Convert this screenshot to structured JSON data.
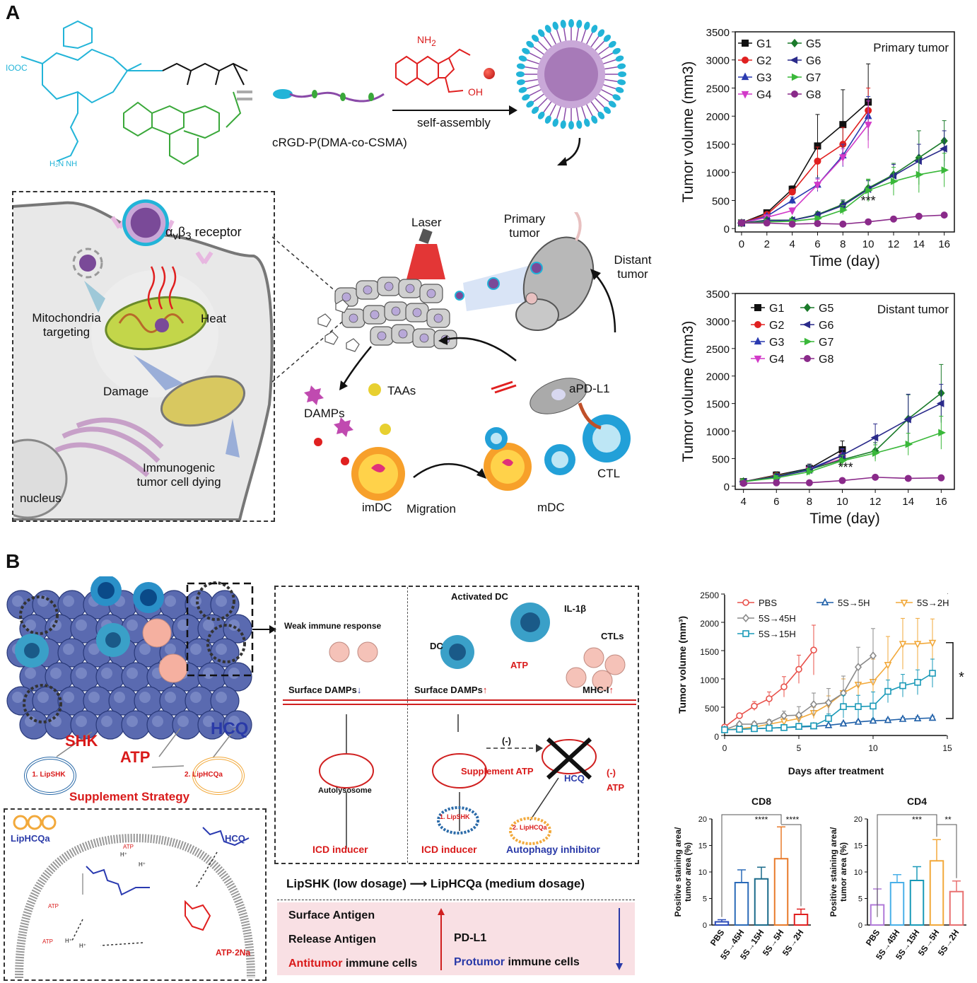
{
  "panelA": {
    "letter": "A",
    "polymer_label": "cRGD-P(DMA-co-CSMA)",
    "self_assembly": "self-assembly",
    "chem_nh2": "NH",
    "chem_nh2_sub": "2",
    "chem_oh": "OH",
    "chem_cooh": "IOOC",
    "receptor_label": "α",
    "receptor_label_v": "v",
    "receptor_label_b": "β",
    "receptor_label_3": "3",
    "receptor_suffix": " receptor",
    "mito_targeting": "Mitochondria\ntargeting",
    "mito_targeting_1": "Mitochondria",
    "mito_targeting_2": "targeting",
    "heat": "Heat",
    "damage": "Damage",
    "icd_1": "Immunogenic",
    "icd_2": "tumor cell dying",
    "nucleus": "nucleus",
    "laser": "Laser",
    "primary_tumor_1": "Primary",
    "primary_tumor_2": "tumor",
    "distant_tumor_1": "Distant",
    "distant_tumor_2": "tumor",
    "damps": "DAMPs",
    "taas": "TAAs",
    "apdl1": "aPD-L1",
    "ctl": "CTL",
    "imdc": "imDC",
    "migration": "Migration",
    "mdc": "mDC"
  },
  "panelB": {
    "letter": "B",
    "shk": "SHK",
    "atp": "ATP",
    "hcq": "HCQ",
    "lipshk": "1. LipSHK",
    "liphcqa": "2. LipHCQa",
    "supplement_strategy": "Supplement Strategy",
    "weak_immune": "Weak immune response",
    "activated_dc": "Activated DC",
    "dc": "DC",
    "il1b": "IL-1β",
    "ctls": "CTLs",
    "atp_small": "ATP",
    "surface_damps": "Surface DAMPs",
    "mhc1": "MHC-I",
    "autolysosome": "Autolysosome",
    "minus": "(-)",
    "supplement_atp": "Supplement ATP",
    "icd_inducer": "ICD inducer",
    "autophagy_inhibitor": "Autophagy inhibitor",
    "lipshk_small": "1. LipSHK",
    "liphcqa_small": "2. LipHCQa",
    "liphcqa_label": "LipHCQa",
    "hcq_label": "HCQ",
    "atp2na": "ATP·2Na",
    "hplus": "H⁺",
    "sequence_left": "LipSHK (low dosage)",
    "sequence_arrow": "⟶",
    "sequence_right": "LipHCQa (medium dosage)",
    "table": {
      "row1": "Surface Antigen",
      "row2": "Release Antigen",
      "row3_red": "Antitumor",
      "row3_rest": " immune cells",
      "right1": "PD-L1",
      "right2_blue": "Protumor",
      "right2_rest": " immune cells"
    }
  },
  "colors": {
    "G1": "#111111",
    "G2": "#e02020",
    "G3": "#2a3ab0",
    "G4": "#d23ac8",
    "G5": "#1a7a2a",
    "G6": "#2a2a8a",
    "G7": "#3ab83a",
    "G8": "#8a2a8a",
    "PBS": "#e8504a",
    "S5H": "#1e5fa8",
    "S2H": "#f2a93b",
    "S45H": "#8a8a8a",
    "S15H": "#1a9ab8",
    "cyan": "#22b4d8",
    "green": "#3aa83a"
  },
  "chart_data": [
    {
      "type": "line",
      "title": "Primary tumor",
      "xlabel": "Time (day)",
      "ylabel": "Tumor volume (mm3)",
      "xlim": [
        -0.5,
        16.8
      ],
      "ylim": [
        -60,
        3500
      ],
      "xticks": [
        0,
        2,
        4,
        6,
        8,
        10,
        12,
        14,
        16
      ],
      "yticks": [
        0,
        500,
        1000,
        1500,
        2000,
        2500,
        3000,
        3500
      ],
      "annotation": "***",
      "legend": "top-left, two columns",
      "series": [
        {
          "name": "G1",
          "marker": "square",
          "x": [
            0,
            2,
            4,
            6,
            8,
            10
          ],
          "y": [
            100,
            280,
            700,
            1470,
            1850,
            2250
          ],
          "err": [
            20,
            40,
            60,
            560,
            620,
            680
          ]
        },
        {
          "name": "G2",
          "marker": "circle",
          "x": [
            0,
            2,
            4,
            6,
            8,
            10
          ],
          "y": [
            100,
            250,
            650,
            1200,
            1500,
            2100
          ],
          "err": [
            20,
            30,
            50,
            250,
            300,
            400
          ]
        },
        {
          "name": "G3",
          "marker": "triangle",
          "x": [
            0,
            2,
            4,
            6,
            8,
            10
          ],
          "y": [
            100,
            220,
            500,
            780,
            1300,
            2000
          ],
          "err": [
            20,
            30,
            60,
            120,
            200,
            350
          ]
        },
        {
          "name": "G4",
          "marker": "triangle-down",
          "x": [
            0,
            2,
            4,
            6,
            8,
            10
          ],
          "y": [
            100,
            200,
            320,
            780,
            1270,
            1850
          ],
          "err": [
            20,
            30,
            50,
            100,
            150,
            420
          ]
        },
        {
          "name": "G5",
          "marker": "diamond",
          "x": [
            0,
            2,
            4,
            6,
            8,
            10,
            12,
            14,
            16
          ],
          "y": [
            100,
            150,
            150,
            250,
            430,
            720,
            960,
            1260,
            1560
          ],
          "err": [
            20,
            20,
            30,
            50,
            80,
            150,
            200,
            480,
            360
          ]
        },
        {
          "name": "G6",
          "marker": "triangle-left",
          "x": [
            0,
            2,
            4,
            6,
            8,
            10,
            12,
            14,
            16
          ],
          "y": [
            100,
            140,
            150,
            240,
            410,
            700,
            940,
            1200,
            1420
          ],
          "err": [
            20,
            20,
            30,
            50,
            80,
            150,
            200,
            300,
            320
          ]
        },
        {
          "name": "G7",
          "marker": "triangle-right",
          "x": [
            0,
            2,
            4,
            6,
            8,
            10,
            12,
            14,
            16
          ],
          "y": [
            100,
            120,
            130,
            180,
            330,
            680,
            840,
            960,
            1040
          ],
          "err": [
            20,
            20,
            30,
            40,
            80,
            200,
            250,
            320,
            300
          ]
        },
        {
          "name": "G8",
          "marker": "circle",
          "x": [
            0,
            2,
            4,
            6,
            8,
            10,
            12,
            14,
            16
          ],
          "y": [
            100,
            100,
            80,
            90,
            80,
            120,
            170,
            220,
            240
          ],
          "err": [
            10,
            10,
            10,
            10,
            10,
            15,
            20,
            20,
            20
          ]
        }
      ]
    },
    {
      "type": "line",
      "title": "Distant tumor",
      "xlabel": "Time (day)",
      "ylabel": "Tumor volume (mm3)",
      "xlim": [
        3.5,
        16.8
      ],
      "ylim": [
        -60,
        3500
      ],
      "xticks": [
        4,
        6,
        8,
        10,
        12,
        14,
        16
      ],
      "yticks": [
        0,
        500,
        1000,
        1500,
        2000,
        2500,
        3000,
        3500
      ],
      "annotation": "***",
      "legend": "top-left, two columns",
      "series": [
        {
          "name": "G1",
          "marker": "square",
          "x": [
            4,
            6,
            8,
            10
          ],
          "y": [
            80,
            200,
            320,
            660
          ],
          "err": [
            20,
            60,
            80,
            160
          ]
        },
        {
          "name": "G2",
          "marker": "circle",
          "x": [
            4,
            6,
            8,
            10
          ],
          "y": [
            80,
            190,
            300,
            550
          ],
          "err": [
            20,
            50,
            70,
            120
          ]
        },
        {
          "name": "G3",
          "marker": "triangle",
          "x": [
            4,
            6,
            8,
            10
          ],
          "y": [
            80,
            180,
            310,
            560
          ],
          "err": [
            20,
            50,
            70,
            120
          ]
        },
        {
          "name": "G4",
          "marker": "triangle-down",
          "x": [
            4,
            6,
            8,
            10
          ],
          "y": [
            80,
            160,
            300,
            500
          ],
          "err": [
            20,
            50,
            70,
            100
          ]
        },
        {
          "name": "G5",
          "marker": "diamond",
          "x": [
            4,
            6,
            8,
            10,
            12,
            14,
            16
          ],
          "y": [
            80,
            180,
            300,
            480,
            640,
            1220,
            1690
          ],
          "err": [
            20,
            50,
            70,
            100,
            150,
            440,
            520
          ]
        },
        {
          "name": "G6",
          "marker": "triangle-left",
          "x": [
            4,
            6,
            8,
            10,
            12,
            14,
            16
          ],
          "y": [
            80,
            170,
            290,
            560,
            880,
            1210,
            1500
          ],
          "err": [
            20,
            50,
            70,
            100,
            250,
            460,
            350
          ]
        },
        {
          "name": "G7",
          "marker": "triangle-right",
          "x": [
            4,
            6,
            8,
            10,
            12,
            14,
            16
          ],
          "y": [
            80,
            150,
            260,
            460,
            600,
            760,
            970
          ],
          "err": [
            20,
            40,
            60,
            100,
            150,
            200,
            300
          ]
        },
        {
          "name": "G8",
          "marker": "circle",
          "x": [
            4,
            6,
            8,
            10,
            12,
            14,
            16
          ],
          "y": [
            50,
            60,
            60,
            100,
            160,
            140,
            150
          ],
          "err": [
            10,
            10,
            10,
            15,
            20,
            20,
            20
          ]
        }
      ]
    },
    {
      "type": "line",
      "title": "",
      "xlabel": "Days after treatment",
      "ylabel": "Tumor volume (mm³)",
      "xlim": [
        0,
        15
      ],
      "ylim": [
        0,
        2500
      ],
      "xticks": [
        0,
        5,
        10,
        15
      ],
      "yticks": [
        0,
        500,
        1000,
        1500,
        2000,
        2500
      ],
      "annotation": "*",
      "legend": "top, three columns",
      "series": [
        {
          "name": "PBS",
          "marker": "circle-open",
          "x": [
            0,
            1,
            2,
            3,
            4,
            5,
            6
          ],
          "y": [
            150,
            350,
            520,
            650,
            860,
            1170,
            1510
          ],
          "err": [
            20,
            40,
            80,
            120,
            180,
            250,
            440
          ]
        },
        {
          "name": "5S→5H",
          "marker": "triangle-open",
          "x": [
            0,
            1,
            2,
            3,
            4,
            5,
            6,
            7,
            8,
            9,
            10,
            11,
            12,
            13,
            14
          ],
          "y": [
            100,
            110,
            120,
            130,
            140,
            150,
            160,
            180,
            210,
            240,
            260,
            270,
            290,
            300,
            310
          ],
          "err": [
            10,
            10,
            15,
            15,
            15,
            20,
            20,
            20,
            25,
            25,
            30,
            30,
            30,
            30,
            30
          ]
        },
        {
          "name": "5S→2H",
          "marker": "triangle-down-open",
          "x": [
            0,
            1,
            2,
            3,
            4,
            5,
            6,
            7,
            8,
            9,
            10,
            11,
            12,
            13,
            14
          ],
          "y": [
            100,
            120,
            150,
            200,
            250,
            300,
            400,
            550,
            750,
            900,
            950,
            1250,
            1620,
            1620,
            1640
          ],
          "err": [
            10,
            20,
            30,
            40,
            60,
            80,
            100,
            150,
            250,
            300,
            400,
            500,
            450,
            450,
            420
          ]
        },
        {
          "name": "5S→45H",
          "marker": "diamond-open",
          "x": [
            0,
            1,
            2,
            3,
            4,
            5,
            6,
            7,
            8,
            9,
            10
          ],
          "y": [
            100,
            200,
            200,
            230,
            350,
            360,
            550,
            580,
            750,
            1210,
            1410
          ],
          "err": [
            10,
            30,
            40,
            50,
            80,
            150,
            200,
            250,
            300,
            350,
            480
          ]
        },
        {
          "name": "5S→15H",
          "marker": "square-open",
          "x": [
            0,
            1,
            2,
            3,
            4,
            5,
            6,
            7,
            8,
            9,
            10,
            11,
            12,
            13,
            14
          ],
          "y": [
            100,
            110,
            120,
            130,
            140,
            160,
            170,
            300,
            510,
            510,
            520,
            780,
            880,
            940,
            1100
          ],
          "err": [
            10,
            15,
            20,
            25,
            30,
            40,
            50,
            80,
            200,
            200,
            250,
            200,
            200,
            220,
            250
          ]
        }
      ]
    },
    {
      "type": "bar",
      "title": "CD8",
      "xlabel": "",
      "ylabel": "Positive staining area/ tumor area (%)",
      "ylim": [
        0,
        20
      ],
      "yticks": [
        0,
        5,
        10,
        15,
        20
      ],
      "categories": [
        "PBS",
        "5S→45H",
        "5S→15H",
        "5S→5H",
        "5S→2H"
      ],
      "values": [
        0.6,
        8.0,
        8.7,
        12.5,
        2.0
      ],
      "err": [
        0.4,
        2.4,
        2.2,
        6.0,
        1.0
      ],
      "significance": [
        "****",
        "****"
      ]
    },
    {
      "type": "bar",
      "title": "CD4",
      "xlabel": "",
      "ylabel": "Positive staining area/ tumor area (%)",
      "ylim": [
        0,
        20
      ],
      "yticks": [
        0,
        5,
        10,
        15,
        20
      ],
      "categories": [
        "PBS",
        "5S→45H",
        "5S→15H",
        "5S→5H",
        "5S→2H"
      ],
      "values": [
        3.8,
        8.0,
        8.4,
        12.1,
        6.3
      ],
      "err": [
        3.0,
        1.5,
        2.6,
        4.0,
        2.0
      ],
      "significance": [
        "***",
        "**"
      ]
    }
  ]
}
